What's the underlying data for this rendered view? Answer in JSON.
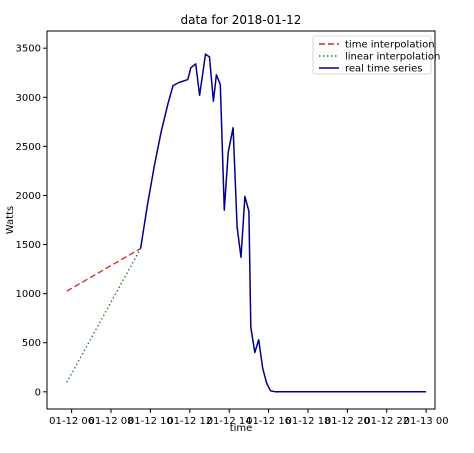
{
  "chart_data": {
    "type": "line",
    "title": "data for 2018-01-12",
    "xlabel": "time",
    "ylabel": "Watts",
    "xlim": [
      4.75,
      24.45
    ],
    "ylim": [
      -175,
      3675
    ],
    "x_ticks": [
      {
        "value": 6,
        "label": "01-12 06"
      },
      {
        "value": 8,
        "label": "01-12 08"
      },
      {
        "value": 10,
        "label": "01-12 10"
      },
      {
        "value": 12,
        "label": "01-12 12"
      },
      {
        "value": 14,
        "label": "01-12 14"
      },
      {
        "value": 16,
        "label": "01-12 16"
      },
      {
        "value": 18,
        "label": "01-12 18"
      },
      {
        "value": 20,
        "label": "01-12 20"
      },
      {
        "value": 22,
        "label": "01-12 22"
      },
      {
        "value": 24,
        "label": "01-13 00"
      }
    ],
    "y_ticks": [
      0,
      500,
      1000,
      1500,
      2000,
      2500,
      3000,
      3500
    ],
    "grid": false,
    "legend_position": "top-right",
    "series": [
      {
        "name": "time interpolation",
        "color": "#d62728",
        "style": "dashed",
        "x": [
          5.75,
          9.5
        ],
        "y": [
          1025,
          1460
        ]
      },
      {
        "name": "linear interpolation",
        "color": "#1a7a1a",
        "style": "dotted",
        "x": [
          5.75,
          9.5
        ],
        "y": [
          95,
          1460
        ]
      },
      {
        "name": "real time series",
        "color": "#00008b",
        "style": "solid",
        "x": [
          9.5,
          9.85,
          10.2,
          10.55,
          10.9,
          11.15,
          11.45,
          11.9,
          12.05,
          12.3,
          12.5,
          12.8,
          13.0,
          13.2,
          13.35,
          13.55,
          13.75,
          13.95,
          14.2,
          14.4,
          14.6,
          14.8,
          15.0,
          15.1,
          15.3,
          15.5,
          15.7,
          15.9,
          16.1,
          16.35,
          18.0,
          20.0,
          22.0,
          24.0
        ],
        "y": [
          1460,
          1900,
          2300,
          2650,
          2940,
          3120,
          3150,
          3180,
          3300,
          3340,
          3020,
          3440,
          3410,
          2960,
          3230,
          3130,
          1850,
          2440,
          2690,
          1680,
          1370,
          1990,
          1840,
          660,
          400,
          530,
          240,
          90,
          10,
          0,
          0,
          0,
          0,
          0
        ]
      }
    ]
  }
}
